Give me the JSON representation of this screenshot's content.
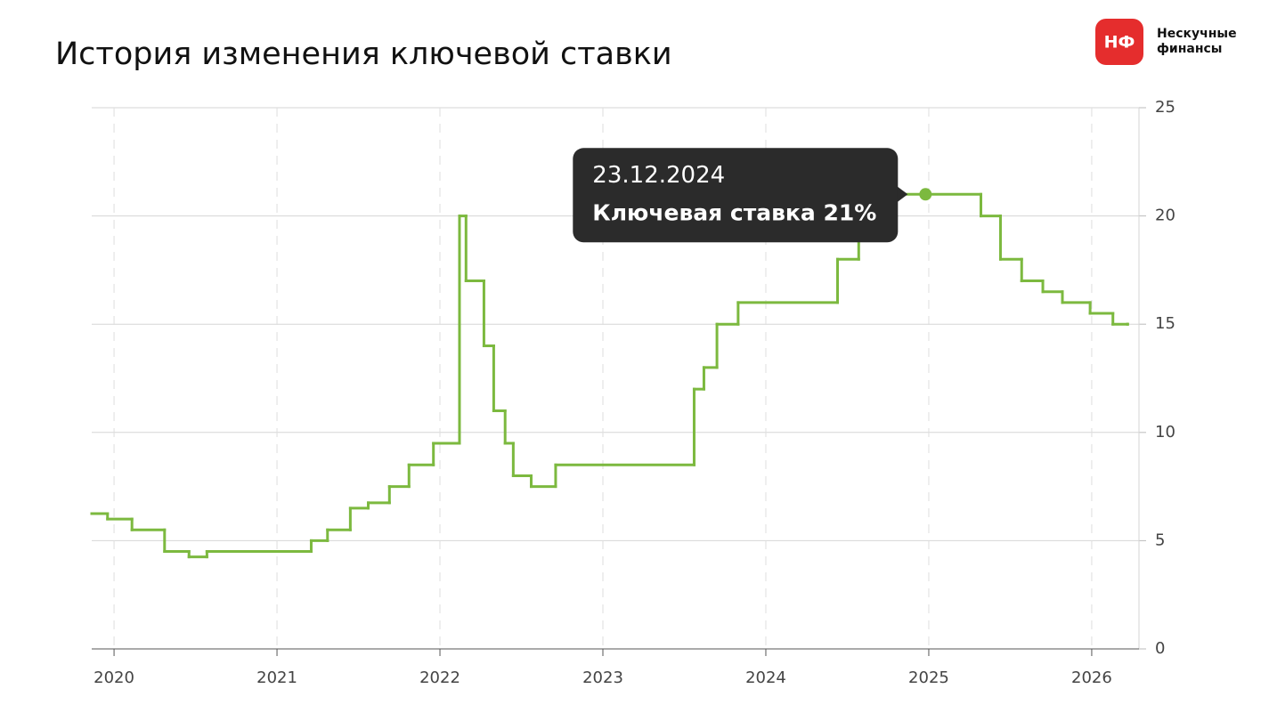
{
  "brand": {
    "logo": "НФ",
    "name_lines": [
      "Нескучные",
      "финансы"
    ]
  },
  "chart_data": {
    "type": "step",
    "title": "История изменения ключевой ставки",
    "x": [
      2019.863,
      2019.96,
      2020.11,
      2020.31,
      2020.46,
      2020.57,
      2021.21,
      2021.31,
      2021.45,
      2021.56,
      2021.69,
      2021.81,
      2021.96,
      2022.12,
      2022.16,
      2022.27,
      2022.33,
      2022.4,
      2022.45,
      2022.56,
      2022.71,
      2023.56,
      2023.62,
      2023.7,
      2023.83,
      2024.44,
      2024.57,
      2024.77,
      2025.32,
      2025.44,
      2025.57,
      2025.7,
      2025.82,
      2025.99,
      2026.13,
      2026.22
    ],
    "series": [
      {
        "color": "#7cb93f",
        "values": [
          6.25,
          6,
          5.5,
          4.5,
          4.25,
          4.5,
          5,
          5.5,
          6.5,
          6.75,
          7.5,
          8.5,
          9.5,
          20,
          17,
          14,
          11,
          9.5,
          8,
          7.5,
          8.5,
          12,
          13,
          15,
          16,
          18,
          19,
          21,
          20,
          18,
          17,
          16.5,
          16,
          15.5,
          15,
          15
        ]
      }
    ],
    "tooltip": {
      "date": "23.12.2024",
      "label": "Ключевая ставка 21%",
      "x": 2024.98,
      "value": 21
    },
    "xlim": [
      2019.863,
      2026.29
    ],
    "xticks": [
      2020,
      2021,
      2022,
      2023,
      2024,
      2025,
      2026
    ],
    "ylim": [
      0,
      25
    ],
    "yticks": [
      0,
      5,
      10,
      15,
      20,
      25
    ],
    "grid": true
  }
}
